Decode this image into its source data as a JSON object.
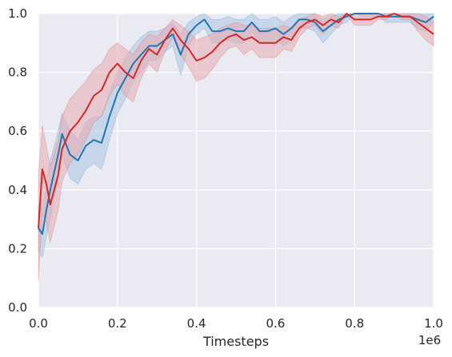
{
  "chart_data": {
    "type": "line",
    "title": "",
    "xlabel": "Timesteps",
    "ylabel": "",
    "x_offset_label": "1e6",
    "xlim": [
      0,
      1
    ],
    "ylim": [
      0,
      1
    ],
    "x_ticks": [
      0.0,
      0.2,
      0.4,
      0.6,
      0.8,
      1.0
    ],
    "x_tick_labels": [
      "0.0",
      "0.2",
      "0.4",
      "0.6",
      "0.8",
      "1.0"
    ],
    "y_ticks": [
      0.0,
      0.2,
      0.4,
      0.6,
      0.8,
      1.0
    ],
    "y_tick_labels": [
      "0.0",
      "0.2",
      "0.4",
      "0.6",
      "0.8",
      "1.0"
    ],
    "grid": true,
    "legend": "none",
    "background_color": "#eaeaf2",
    "series": [
      {
        "color": "#1f77b4",
        "band_color": "#a9c6e2",
        "x": [
          0.0,
          0.01,
          0.02,
          0.03,
          0.05,
          0.06,
          0.08,
          0.1,
          0.12,
          0.14,
          0.16,
          0.18,
          0.2,
          0.22,
          0.24,
          0.26,
          0.28,
          0.3,
          0.32,
          0.34,
          0.36,
          0.38,
          0.4,
          0.42,
          0.44,
          0.46,
          0.48,
          0.5,
          0.52,
          0.54,
          0.56,
          0.58,
          0.6,
          0.62,
          0.64,
          0.66,
          0.68,
          0.7,
          0.72,
          0.74,
          0.76,
          0.78,
          0.8,
          0.82,
          0.84,
          0.86,
          0.88,
          0.9,
          0.92,
          0.94,
          0.96,
          0.98,
          1.0
        ],
        "y": [
          0.27,
          0.25,
          0.33,
          0.4,
          0.52,
          0.59,
          0.52,
          0.5,
          0.55,
          0.57,
          0.56,
          0.65,
          0.73,
          0.78,
          0.83,
          0.86,
          0.89,
          0.89,
          0.91,
          0.93,
          0.86,
          0.93,
          0.96,
          0.98,
          0.94,
          0.94,
          0.95,
          0.94,
          0.94,
          0.97,
          0.94,
          0.94,
          0.95,
          0.93,
          0.95,
          0.98,
          0.98,
          0.97,
          0.94,
          0.96,
          0.98,
          0.99,
          1.0,
          1.0,
          1.0,
          1.0,
          0.99,
          0.99,
          0.99,
          0.99,
          0.98,
          0.97,
          0.99
        ],
        "upper": [
          0.35,
          0.33,
          0.42,
          0.5,
          0.6,
          0.66,
          0.6,
          0.57,
          0.63,
          0.65,
          0.65,
          0.73,
          0.8,
          0.85,
          0.89,
          0.92,
          0.94,
          0.94,
          0.95,
          0.97,
          0.93,
          0.97,
          0.99,
          1.0,
          0.98,
          0.98,
          0.99,
          0.98,
          0.98,
          1.0,
          0.98,
          0.98,
          0.99,
          0.97,
          0.99,
          1.0,
          1.0,
          1.0,
          0.98,
          0.99,
          1.0,
          1.0,
          1.0,
          1.0,
          1.0,
          1.0,
          1.0,
          1.0,
          1.0,
          1.0,
          1.0,
          1.0,
          1.0
        ],
        "lower": [
          0.19,
          0.17,
          0.24,
          0.3,
          0.44,
          0.52,
          0.44,
          0.42,
          0.47,
          0.49,
          0.47,
          0.57,
          0.66,
          0.71,
          0.77,
          0.8,
          0.84,
          0.84,
          0.87,
          0.89,
          0.79,
          0.89,
          0.93,
          0.95,
          0.9,
          0.9,
          0.91,
          0.9,
          0.9,
          0.94,
          0.9,
          0.9,
          0.91,
          0.89,
          0.91,
          0.95,
          0.95,
          0.94,
          0.9,
          0.93,
          0.96,
          0.97,
          1.0,
          0.99,
          0.99,
          0.99,
          0.97,
          0.97,
          0.97,
          0.97,
          0.95,
          0.94,
          0.97
        ]
      },
      {
        "color": "#d62728",
        "band_color": "#e8a9b1",
        "x": [
          0.0,
          0.01,
          0.02,
          0.03,
          0.05,
          0.06,
          0.08,
          0.1,
          0.12,
          0.14,
          0.16,
          0.18,
          0.2,
          0.22,
          0.24,
          0.26,
          0.28,
          0.3,
          0.32,
          0.34,
          0.36,
          0.38,
          0.4,
          0.42,
          0.44,
          0.46,
          0.48,
          0.5,
          0.52,
          0.54,
          0.56,
          0.58,
          0.6,
          0.62,
          0.64,
          0.66,
          0.68,
          0.7,
          0.72,
          0.74,
          0.76,
          0.78,
          0.8,
          0.82,
          0.84,
          0.86,
          0.88,
          0.9,
          0.92,
          0.94,
          0.96,
          0.98,
          1.0
        ],
        "y": [
          0.27,
          0.47,
          0.42,
          0.35,
          0.45,
          0.54,
          0.6,
          0.63,
          0.67,
          0.72,
          0.74,
          0.8,
          0.83,
          0.8,
          0.78,
          0.84,
          0.88,
          0.86,
          0.91,
          0.95,
          0.91,
          0.88,
          0.84,
          0.85,
          0.87,
          0.9,
          0.92,
          0.93,
          0.91,
          0.92,
          0.9,
          0.9,
          0.9,
          0.92,
          0.91,
          0.95,
          0.97,
          0.98,
          0.96,
          0.98,
          0.97,
          1.0,
          0.98,
          0.98,
          0.98,
          0.99,
          0.99,
          1.0,
          0.99,
          0.99,
          0.97,
          0.95,
          0.93
        ],
        "upper": [
          0.45,
          0.62,
          0.55,
          0.48,
          0.57,
          0.65,
          0.71,
          0.74,
          0.77,
          0.81,
          0.83,
          0.88,
          0.9,
          0.88,
          0.86,
          0.9,
          0.93,
          0.92,
          0.95,
          0.98,
          0.96,
          0.94,
          0.91,
          0.92,
          0.93,
          0.95,
          0.96,
          0.97,
          0.96,
          0.96,
          0.95,
          0.95,
          0.95,
          0.96,
          0.95,
          0.98,
          0.99,
          1.0,
          0.99,
          1.0,
          0.99,
          1.0,
          1.0,
          1.0,
          1.0,
          1.0,
          1.0,
          1.0,
          1.0,
          1.0,
          1.0,
          0.99,
          0.97
        ],
        "lower": [
          0.09,
          0.32,
          0.29,
          0.22,
          0.33,
          0.43,
          0.49,
          0.52,
          0.57,
          0.63,
          0.65,
          0.72,
          0.76,
          0.72,
          0.7,
          0.78,
          0.83,
          0.8,
          0.87,
          0.92,
          0.86,
          0.82,
          0.77,
          0.78,
          0.81,
          0.85,
          0.88,
          0.89,
          0.86,
          0.88,
          0.85,
          0.85,
          0.85,
          0.88,
          0.87,
          0.92,
          0.95,
          0.96,
          0.93,
          0.96,
          0.95,
          1.0,
          0.96,
          0.96,
          0.96,
          0.98,
          0.98,
          1.0,
          0.98,
          0.98,
          0.94,
          0.91,
          0.89
        ]
      }
    ]
  }
}
